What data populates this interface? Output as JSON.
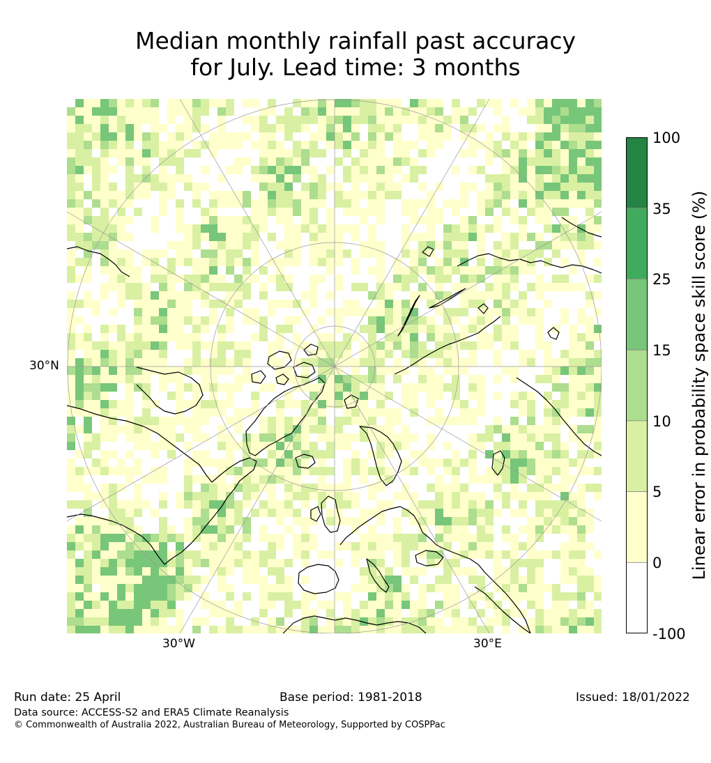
{
  "title": {
    "line1": "Median monthly rainfall past accuracy",
    "line2": "for July. Lead time: 3 months"
  },
  "map": {
    "projection": "north-polar-stereographic",
    "region": "Northern Hemisphere",
    "land_color": "#000000",
    "graticule_color": "#999999",
    "lon_labels": [
      "30°W",
      "30°E"
    ],
    "lat_labels": [
      "30°N"
    ]
  },
  "colorbar": {
    "label": "Linear error in probability space skill score (%)",
    "ticks": [
      "100",
      "35",
      "25",
      "15",
      "10",
      "5",
      "0",
      "-100"
    ],
    "bins": [
      {
        "from": -100,
        "to": 0,
        "color": "#ffffff"
      },
      {
        "from": 0,
        "to": 5,
        "color": "#ffffcc"
      },
      {
        "from": 5,
        "to": 10,
        "color": "#d9f0a3"
      },
      {
        "from": 10,
        "to": 15,
        "color": "#addd8e"
      },
      {
        "from": 15,
        "to": 25,
        "color": "#78c679"
      },
      {
        "from": 25,
        "to": 35,
        "color": "#41ab5d"
      },
      {
        "from": 35,
        "to": 100,
        "color": "#238443"
      }
    ]
  },
  "footer": {
    "run_date": "Run date: 25 April",
    "base_period": "Base period: 1981-2018",
    "issued": "Issued: 18/01/2022",
    "data_source": "Data source: ACCESS-S2 and ERA5 Climate Reanalysis",
    "copyright": "© Commonwealth of Australia 2022, Australian Bureau of Meteorology, Supported by COSPPac"
  }
}
